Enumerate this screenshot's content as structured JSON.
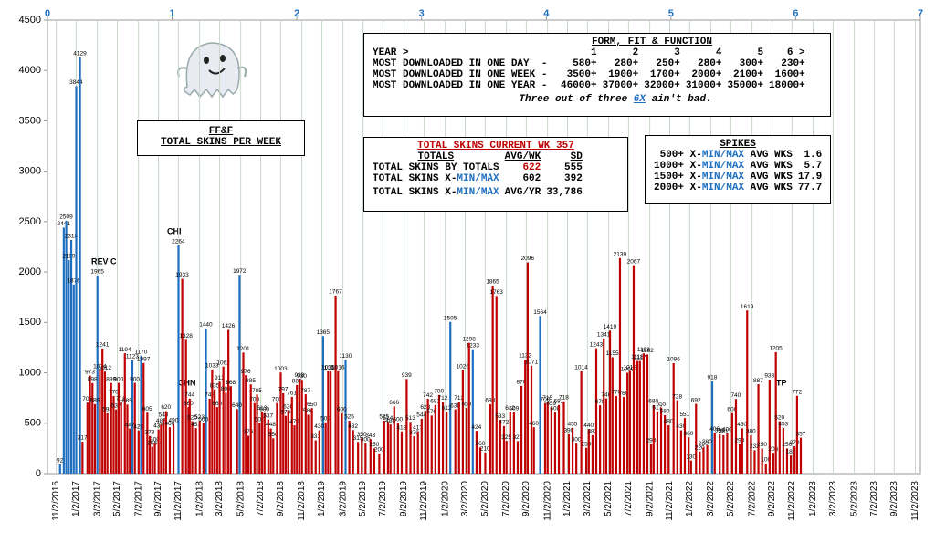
{
  "chart_data": {
    "type": "bar",
    "title": "FF&F",
    "subtitle": "TOTAL SKINS PER WEEK",
    "xlim": [
      0,
      7
    ],
    "xticks": [
      0,
      1,
      2,
      3,
      4,
      5,
      6,
      7
    ],
    "ylim": [
      0,
      4500
    ],
    "yticks": [
      0,
      500,
      1000,
      1500,
      2000,
      2500,
      3000,
      3500,
      4000,
      4500
    ],
    "grid": true,
    "x2ticks": [
      {
        "value": 0.07,
        "label": "11/2/2016"
      },
      {
        "value": 0.23,
        "label": "1/2/2017"
      },
      {
        "value": 0.4,
        "label": "3/2/2017"
      },
      {
        "value": 0.56,
        "label": "5/2/2017"
      },
      {
        "value": 0.73,
        "label": "7/2/2017"
      },
      {
        "value": 0.89,
        "label": "9/2/2017"
      },
      {
        "value": 1.05,
        "label": "11/2/2017"
      },
      {
        "value": 1.22,
        "label": "1/2/2018"
      },
      {
        "value": 1.38,
        "label": "3/2/2018"
      },
      {
        "value": 1.55,
        "label": "5/2/2018"
      },
      {
        "value": 1.71,
        "label": "7/2/2018"
      },
      {
        "value": 1.87,
        "label": "9/2/2018"
      },
      {
        "value": 2.04,
        "label": "11/2/2018"
      },
      {
        "value": 2.2,
        "label": "1/2/2019"
      },
      {
        "value": 2.37,
        "label": "3/2/2019"
      },
      {
        "value": 2.53,
        "label": "5/2/2019"
      },
      {
        "value": 2.69,
        "label": "7/2/2019"
      },
      {
        "value": 2.86,
        "label": "9/2/2019"
      },
      {
        "value": 3.02,
        "label": "11/2/2019"
      },
      {
        "value": 3.19,
        "label": "1/2/2020"
      },
      {
        "value": 3.35,
        "label": "3/2/2020"
      },
      {
        "value": 3.51,
        "label": "5/2/2020"
      },
      {
        "value": 3.68,
        "label": "7/2/2020"
      },
      {
        "value": 3.84,
        "label": "9/2/2020"
      },
      {
        "value": 4.01,
        "label": "11/2/2020"
      },
      {
        "value": 4.17,
        "label": "1/2/2021"
      },
      {
        "value": 4.33,
        "label": "3/2/2021"
      },
      {
        "value": 4.5,
        "label": "5/2/2021"
      },
      {
        "value": 4.66,
        "label": "7/2/2021"
      },
      {
        "value": 4.83,
        "label": "9/2/2021"
      },
      {
        "value": 4.99,
        "label": "11/2/2021"
      },
      {
        "value": 5.15,
        "label": "1/2/2022"
      },
      {
        "value": 5.32,
        "label": "3/2/2022"
      },
      {
        "value": 5.48,
        "label": "5/2/2022"
      },
      {
        "value": 5.65,
        "label": "7/2/2022"
      },
      {
        "value": 5.81,
        "label": "9/2/2022"
      },
      {
        "value": 5.97,
        "label": "11/2/2022"
      },
      {
        "value": 6.14,
        "label": "1/2/2023"
      },
      {
        "value": 6.3,
        "label": "3/2/2023"
      },
      {
        "value": 6.47,
        "label": "5/2/2023"
      },
      {
        "value": 6.63,
        "label": "7/2/2023"
      },
      {
        "value": 6.79,
        "label": "9/2/2023"
      },
      {
        "value": 6.96,
        "label": "11/2/2023"
      }
    ],
    "series": [
      {
        "color": "#1f6fc0",
        "x": [
          0.1,
          0.13,
          0.15,
          0.17,
          0.19,
          0.21,
          0.23,
          0.26,
          0.4,
          0.68,
          0.75,
          1.05,
          1.27,
          1.54,
          2.21,
          2.39,
          3.23,
          3.41,
          3.95,
          5.33
        ],
        "values": [
          92,
          2441,
          2509,
          2119,
          2318,
          1876,
          3844,
          4129,
          1965,
          1123,
          1170,
          2264,
          1440,
          1972,
          1365,
          1130,
          1505,
          1233,
          1564,
          918
        ]
      },
      {
        "color": "#c00000",
        "x": [
          0.28,
          0.32,
          0.34,
          0.36,
          0.38,
          0.42,
          0.44,
          0.46,
          0.48,
          0.51,
          0.53,
          0.55,
          0.57,
          0.59,
          0.62,
          0.64,
          0.66,
          0.7,
          0.73,
          0.77,
          0.8,
          0.82,
          0.84,
          0.86,
          0.89,
          0.91,
          0.93,
          0.95,
          0.98,
          1.01,
          1.08,
          1.11,
          1.13,
          1.14,
          1.16,
          1.19,
          1.22,
          1.25,
          1.3,
          1.32,
          1.34,
          1.36,
          1.38,
          1.41,
          1.43,
          1.45,
          1.47,
          1.52,
          1.57,
          1.59,
          1.61,
          1.63,
          1.66,
          1.68,
          1.7,
          1.72,
          1.74,
          1.77,
          1.79,
          1.81,
          1.84,
          1.87,
          1.89,
          1.91,
          1.93,
          1.96,
          1.98,
          2.0,
          2.02,
          2.04,
          2.07,
          2.09,
          2.12,
          2.15,
          2.18,
          2.23,
          2.25,
          2.27,
          2.31,
          2.33,
          2.36,
          2.42,
          2.45,
          2.49,
          2.52,
          2.55,
          2.59,
          2.62,
          2.66,
          2.7,
          2.73,
          2.75,
          2.78,
          2.81,
          2.84,
          2.88,
          2.91,
          2.94,
          2.97,
          3.0,
          3.03,
          3.05,
          3.08,
          3.11,
          3.14,
          3.17,
          3.2,
          3.27,
          3.3,
          3.33,
          3.36,
          3.38,
          3.44,
          3.47,
          3.51,
          3.55,
          3.57,
          3.6,
          3.63,
          3.66,
          3.68,
          3.71,
          3.74,
          3.77,
          3.8,
          3.83,
          3.85,
          3.88,
          3.9,
          3.99,
          4.01,
          4.04,
          4.07,
          4.1,
          4.14,
          4.18,
          4.21,
          4.24,
          4.28,
          4.32,
          4.34,
          4.37,
          4.4,
          4.43,
          4.46,
          4.48,
          4.51,
          4.53,
          4.56,
          4.59,
          4.62,
          4.65,
          4.67,
          4.7,
          4.73,
          4.75,
          4.78,
          4.81,
          4.84,
          4.86,
          4.89,
          4.92,
          4.95,
          4.98,
          5.02,
          5.05,
          5.08,
          5.11,
          5.14,
          5.16,
          5.2,
          5.23,
          5.26,
          5.29,
          5.35,
          5.39,
          5.42,
          5.45,
          5.49,
          5.52,
          5.55,
          5.57,
          5.61,
          5.64,
          5.67,
          5.7,
          5.73,
          5.76,
          5.79,
          5.82,
          5.84,
          5.87,
          5.9,
          5.93,
          5.96,
          5.99,
          6.01,
          6.04
        ],
        "values": [
          317,
          705,
          973,
          898,
          689,
          1024,
          1241,
          1012,
          598,
          899,
          770,
          637,
          900,
          710,
          1194,
          685,
          447,
          900,
          429,
          1097,
          605,
          373,
          266,
          300,
          437,
          487,
          543,
          620,
          460,
          490,
          1933,
          1328,
          660,
          744,
          520,
          451,
          523,
          500,
          743,
          1033,
          835,
          660,
          912,
          1062,
          803,
          1426,
          868,
          640,
          1201,
          976,
          376,
          885,
          700,
          785,
          500,
          613,
          600,
          537,
          448,
          350,
          700,
          1003,
          797,
          573,
          626,
          761,
          479,
          880,
          938,
          930,
          787,
          584,
          650,
          331,
          430,
          509,
          1015,
          1013,
          1767,
          1016,
          600,
          525,
          432,
          315,
          350,
          300,
          343,
          250,
          200,
          525,
          514,
          488,
          666,
          500,
          418,
          939,
          513,
          370,
          417,
          544,
          623,
          742,
          576,
          681,
          780,
          712,
          612,
          638,
          712,
          1026,
          653,
          1298,
          424,
          260,
          210,
          688,
          1865,
          1763,
          533,
          472,
          325,
          612,
          609,
          322,
          870,
          1132,
          2096,
          1071,
          460,
          700,
          715,
          659,
          608,
          681,
          718,
          390,
          455,
          300,
          1014,
          255,
          440,
          382,
          1243,
          678,
          1341,
          746,
          1419,
          1155,
          770,
          2139,
          760,
          1000,
          1018,
          2067,
          1118,
          1117,
          1193,
          1182,
          290,
          680,
          617,
          655,
          580,
          480,
          1096,
          728,
          430,
          551,
          360,
          130,
          692,
          220,
          260,
          280,
          406,
          390,
          381,
          400,
          600,
          740,
          290,
          450,
          1619,
          380,
          232,
          887,
          250,
          100,
          933,
          206,
          1205,
          520,
          453,
          250,
          180,
          270,
          772,
          357
        ]
      }
    ],
    "annotations": [
      "REV C",
      "CHI",
      "CHN",
      "TP"
    ]
  },
  "form_fit_function": {
    "title": "FORM, FIT & FUNCTION",
    "columns": [
      "YEAR >",
      "1",
      "2",
      "3",
      "4",
      "5",
      "6 >"
    ],
    "rows": [
      [
        "MOST DOWNLOADED IN ONE DAY  -",
        "580+",
        "280+",
        "250+",
        "280+",
        "300+",
        "230+"
      ],
      [
        "MOST DOWNLOADED IN ONE WEEK -",
        "3500+",
        "1900+",
        "1700+",
        "2000+",
        "2100+",
        "1600+"
      ],
      [
        "MOST DOWNLOADED IN ONE YEAR -",
        "46000+",
        "37000+",
        "32000+",
        "31000+",
        "35000+",
        "18000+"
      ]
    ],
    "note": [
      "Three out of three ",
      "6X",
      " ain't bad."
    ]
  },
  "totals": {
    "title": "TOTAL SKINS CURRENT WK  357",
    "columns": [
      "TOTALS",
      "AVG/WK",
      "SD"
    ],
    "rows": [
      [
        [
          "TOTAL SKINS BY TOTALS"
        ],
        "622",
        "555"
      ],
      [
        [
          "TOTAL SKINS X-",
          "MIN/MAX"
        ],
        "602",
        "392"
      ],
      [
        [
          "TOTAL SKINS X-",
          "MIN/MAX"
        ],
        "AVG/YR",
        "33,786"
      ]
    ]
  },
  "spikes": {
    "title": "SPIKES",
    "rows": [
      [
        "500+ X-",
        "MIN/MAX",
        " AVG WKS",
        "1.6"
      ],
      [
        "1000+ X-",
        "MIN/MAX",
        " AVG WKS",
        "5.7"
      ],
      [
        "1500+ X-",
        "MIN/MAX",
        " AVG WKS",
        "17.9"
      ],
      [
        "2000+ X-",
        "MIN/MAX",
        " AVG WKS",
        "77.7"
      ]
    ]
  }
}
